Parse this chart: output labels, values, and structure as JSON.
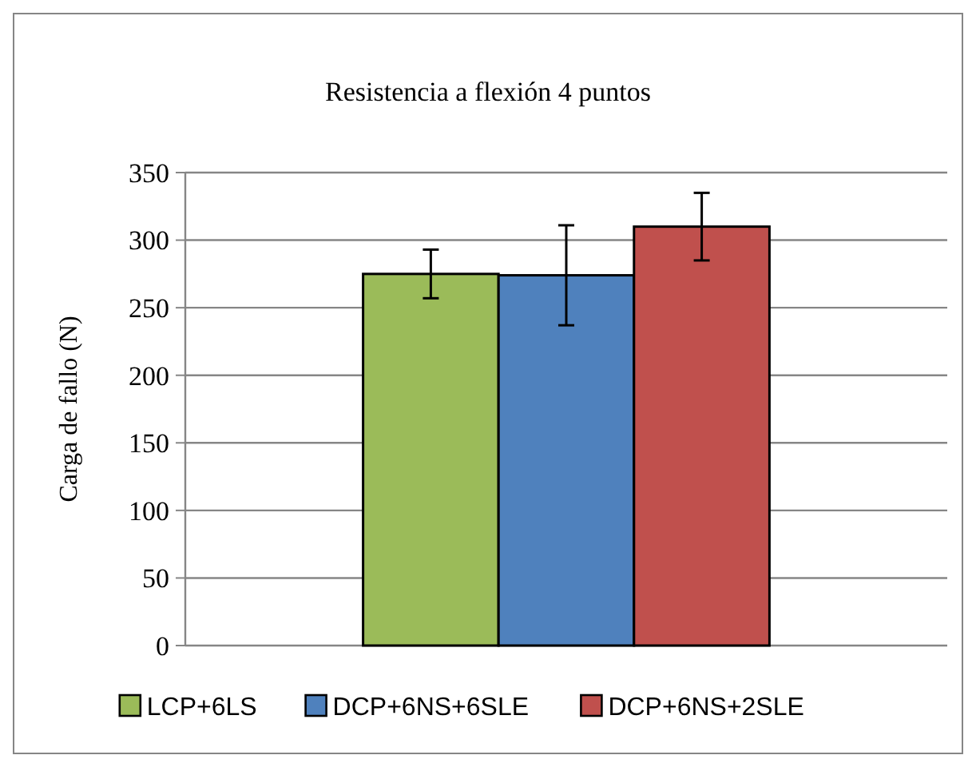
{
  "chart_data": {
    "type": "bar",
    "title": "Resistencia a flexión 4 puntos",
    "ylabel": "Carga de fallo (N)",
    "categories": [
      null
    ],
    "series": [
      {
        "name": "LCP+6LS",
        "color": "#9bbb59",
        "values": [
          275
        ],
        "errors": [
          18
        ]
      },
      {
        "name": "DCP+6NS+6SLE",
        "color": "#4f81bd",
        "values": [
          274
        ],
        "errors": [
          37
        ]
      },
      {
        "name": "DCP+6NS+2SLE",
        "color": "#c0504d",
        "values": [
          310
        ],
        "errors": [
          25
        ]
      }
    ],
    "ylim": [
      0,
      350
    ],
    "yticks": [
      0,
      50,
      100,
      150,
      200,
      250,
      300,
      350
    ],
    "grid": "y",
    "legend": "bottom"
  }
}
